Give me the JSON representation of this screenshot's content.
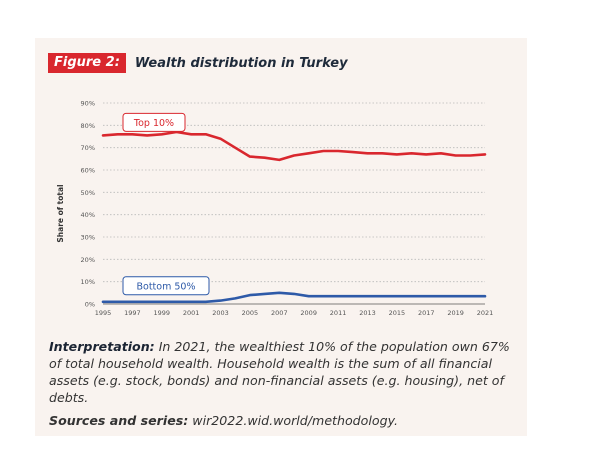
{
  "figure": {
    "label": "Figure 2:",
    "title": "Wealth distribution in Turkey"
  },
  "chart_data": {
    "type": "line",
    "ylabel": "Share of total",
    "ylim": [
      0,
      90
    ],
    "yticks": [
      0,
      10,
      20,
      30,
      40,
      50,
      60,
      70,
      80,
      90
    ],
    "ytick_labels": [
      "0%",
      "10%",
      "20%",
      "30%",
      "40%",
      "50%",
      "60%",
      "70%",
      "80%",
      "90%"
    ],
    "xticks": [
      1995,
      1997,
      1999,
      2001,
      2003,
      2005,
      2007,
      2009,
      2011,
      2013,
      2015,
      2017,
      2019,
      2021
    ],
    "x": [
      1995,
      1996,
      1997,
      1998,
      1999,
      2000,
      2001,
      2002,
      2003,
      2004,
      2005,
      2006,
      2007,
      2008,
      2009,
      2010,
      2011,
      2012,
      2013,
      2014,
      2015,
      2016,
      2017,
      2018,
      2019,
      2020,
      2021
    ],
    "grid": "horizontal-dotted",
    "series": [
      {
        "name": "Top 10%",
        "color": "#d9272e",
        "values": [
          75.5,
          76,
          76,
          75.5,
          76,
          77,
          76,
          76,
          74,
          70,
          66,
          65.5,
          64.5,
          66.5,
          67.5,
          68.5,
          68.5,
          68,
          67.5,
          67.5,
          67,
          67.5,
          67,
          67.5,
          66.5,
          66.5,
          67
        ]
      },
      {
        "name": "Bottom 50%",
        "color": "#2e5aa8",
        "values": [
          1,
          1,
          1,
          1,
          1,
          1,
          1,
          1,
          1.5,
          2.5,
          4,
          4.5,
          5,
          4.5,
          3.5,
          3.5,
          3.5,
          3.5,
          3.5,
          3.5,
          3.5,
          3.5,
          3.5,
          3.5,
          3.5,
          3.5,
          3.5
        ]
      }
    ]
  },
  "interpretation": {
    "label": "Interpretation:",
    "text": " In 2021, the wealthiest 10% of the population own 67% of total household wealth. Household wealth is the sum of all financial assets (e.g. stock, bonds) and non-financial assets (e.g. housing), net of debts."
  },
  "sources": {
    "label": "Sources and series:",
    "text": " wir2022.wid.world/methodology."
  },
  "colors": {
    "badge": "#d9272e",
    "card_bg": "#f9f3ef"
  }
}
